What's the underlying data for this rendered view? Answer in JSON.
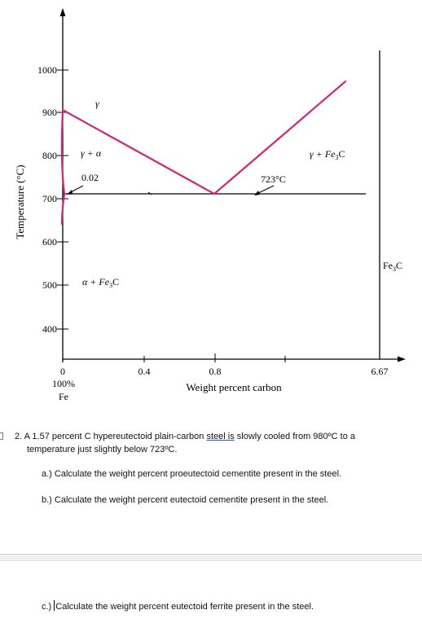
{
  "diagram": {
    "y_axis_label": "Temperature (°C)",
    "x_axis_label": "Weight percent carbon",
    "y_ticks": [
      "1000",
      "900",
      "800",
      "700",
      "600",
      "500",
      "400"
    ],
    "x_ticks": [
      "0",
      "0.4",
      "0.8",
      "6.67"
    ],
    "x_origin_sub1": "100%",
    "x_origin_sub2": "Fe",
    "right_label": "Fe",
    "right_label_sub": "3",
    "right_label_tail": "C",
    "phase_gamma": "γ",
    "phase_gamma_alpha": "γ + α",
    "label_002": "0.02",
    "phase_gamma_fe3c_a": "γ + Fe",
    "phase_gamma_fe3c_sub": "3",
    "phase_gamma_fe3c_b": "C",
    "label_723": "723°C",
    "phase_alpha_fe3c_a": "α + Fe",
    "phase_alpha_fe3c_sub": "3",
    "phase_alpha_fe3c_b": "C",
    "colors": {
      "phase_line": "#cc2a7e",
      "axis": "#000000"
    }
  },
  "question": {
    "number": "2.",
    "line1_a": "A 1.57 percent C hypereutectoid plain-carbon ",
    "line1_link": "steel is",
    "line1_b": " slowly cooled from 980ºC to a",
    "line2": "temperature just slightly below 723ºC.",
    "part_a": "a.)  Calculate the weight percent proeutectoid cementite present in the steel.",
    "part_b": "b.)  Calculate the weight percent eutectoid cementite present in the steel.",
    "part_c_prefix": "c.) ",
    "part_c": "Calculate the weight percent eutectoid ferrite present in the steel."
  }
}
